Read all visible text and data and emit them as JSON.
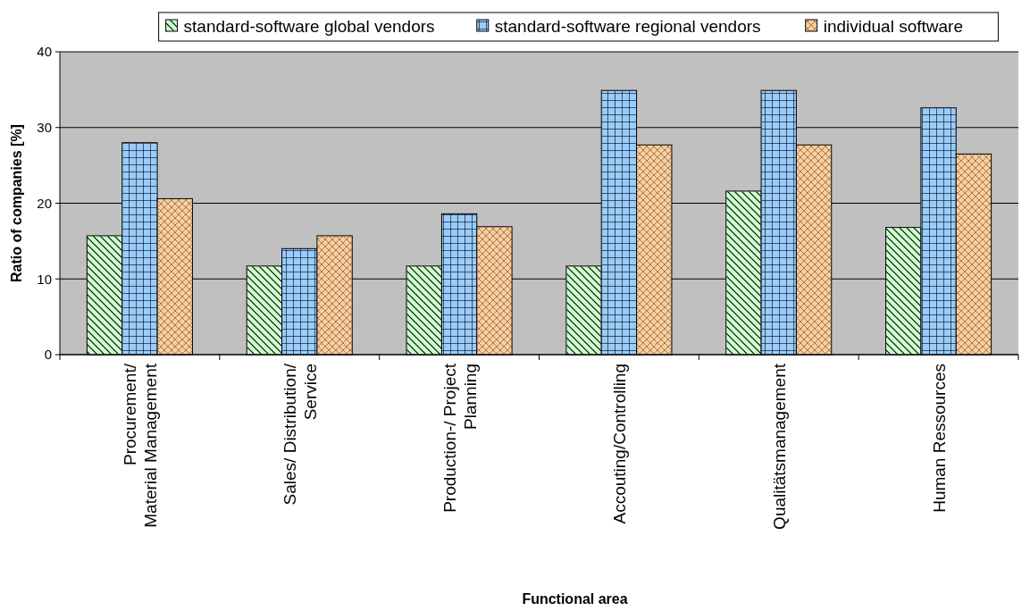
{
  "chart_data": {
    "type": "bar",
    "xlabel": "Functional area",
    "ylabel": "Ratio of companies [%]",
    "categories": [
      "Procurement/ Material Management",
      "Sales/ Distribution/ Service",
      "Production-/ Project Planning",
      "Accouting/Controlling",
      "Qualitätsmanagement",
      "Human Ressources"
    ],
    "series": [
      {
        "name": "standard-software global vendors",
        "color": "#ccffcc",
        "values": [
          15.7,
          11.7,
          11.7,
          11.7,
          21.6,
          16.8
        ]
      },
      {
        "name": "standard-software regional vendors",
        "color": "#99ccff",
        "values": [
          28.0,
          14.0,
          18.6,
          34.9,
          34.9,
          32.6
        ]
      },
      {
        "name": "individual software",
        "color": "#ffcc99",
        "values": [
          20.6,
          15.7,
          16.9,
          27.7,
          27.7,
          26.5
        ]
      }
    ],
    "ylim": [
      0,
      40
    ],
    "yticks": [
      0,
      10,
      20,
      30,
      40
    ],
    "grid": "y",
    "legend": "top"
  }
}
